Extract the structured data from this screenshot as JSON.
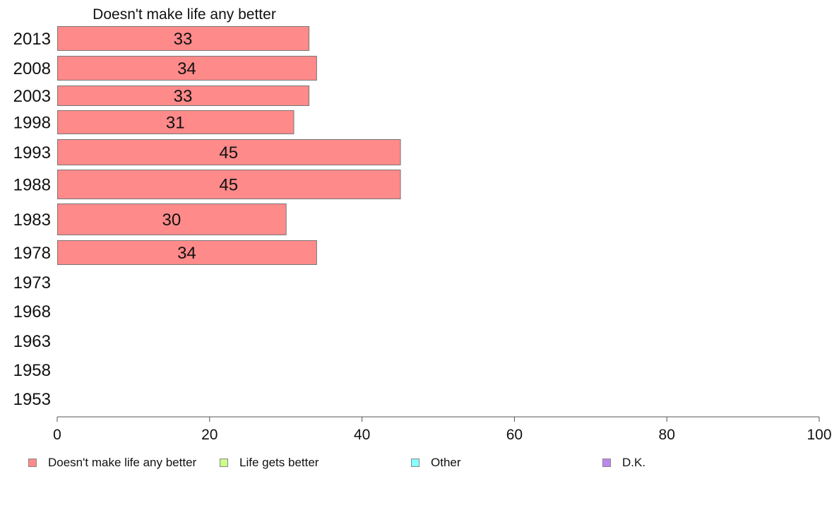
{
  "chart_data": {
    "type": "bar",
    "orientation": "horizontal",
    "title": "Doesn't make life any better",
    "categories": [
      "2013",
      "2008",
      "2003",
      "1998",
      "1993",
      "1988",
      "1983",
      "1978",
      "1973",
      "1968",
      "1963",
      "1958",
      "1953"
    ],
    "series": [
      {
        "name": "Doesn't make life any better",
        "color": "#ff8a8a",
        "values": [
          33,
          34,
          33,
          31,
          45,
          45,
          30,
          34,
          null,
          null,
          null,
          null,
          null
        ],
        "labels": [
          "33",
          "34",
          "33",
          "31",
          "45",
          "45",
          "30",
          "34",
          "",
          "",
          "",
          "",
          ""
        ]
      }
    ],
    "xlim": [
      0,
      100
    ],
    "xticks": [
      "0",
      "20",
      "40",
      "60",
      "80",
      "100"
    ],
    "grid": false,
    "legend_position": "bottom"
  },
  "legend": {
    "items": [
      {
        "label": "Doesn't make life any better",
        "color": "#ff8a8a"
      },
      {
        "label": "Life gets better",
        "color": "#ccff88"
      },
      {
        "label": "Other",
        "color": "#88ffff"
      },
      {
        "label": "D.K.",
        "color": "#bb88ee"
      }
    ]
  }
}
